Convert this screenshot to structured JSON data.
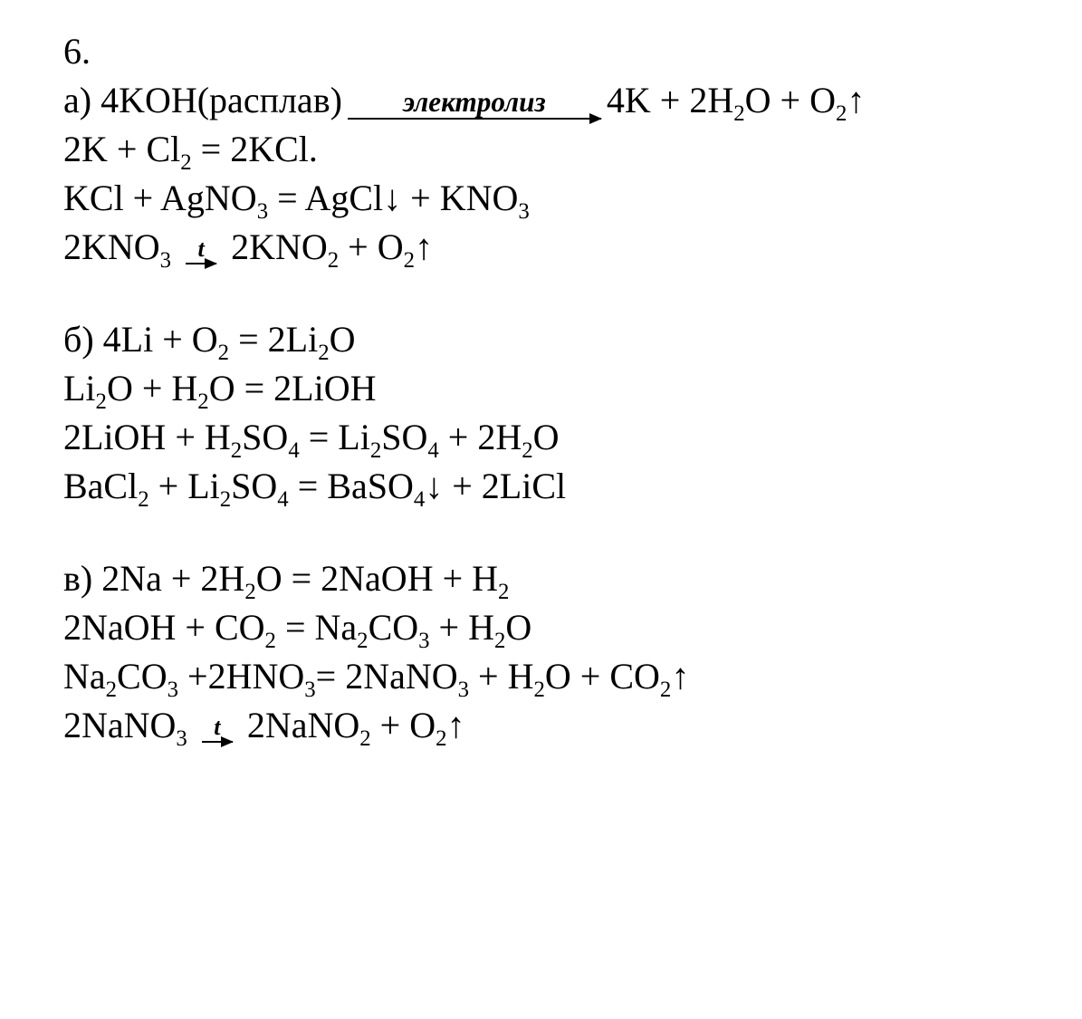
{
  "problem_number": "6.",
  "arrow_labels": {
    "electrolysis": "электролиз",
    "heat": "t"
  },
  "parts": {
    "a": {
      "label": "a)",
      "lines": [
        {
          "left": "4KOH(расплав)",
          "arrow": "electrolysis_long",
          "right": "4K + 2H<sub>2</sub>O + O<sub>2</sub>↑"
        },
        {
          "plain": "2K + Cl<sub>2</sub> = 2KCl."
        },
        {
          "plain": "KCl + AgNO<sub>3</sub> = AgCl↓ + KNO<sub>3</sub>"
        },
        {
          "left": "2KNO<sub>3</sub>",
          "arrow": "heat_short",
          "right": "2KNO<sub>2</sub> + O<sub>2</sub>↑"
        }
      ]
    },
    "b": {
      "label": "б)",
      "lines": [
        {
          "plain": "4Li + O<sub>2</sub> = 2Li<sub>2</sub>O"
        },
        {
          "plain": "Li<sub>2</sub>O + H<sub>2</sub>O = 2LiOH"
        },
        {
          "plain": "2LiOH + H<sub>2</sub>SO<sub>4</sub> = Li<sub>2</sub>SO<sub>4</sub> + 2H<sub>2</sub>O"
        },
        {
          "plain": "BaCl<sub>2</sub> + Li<sub>2</sub>SO<sub>4</sub> = BaSO<sub>4</sub>↓ + 2LiCl"
        }
      ]
    },
    "c": {
      "label": "в)",
      "lines": [
        {
          "plain": "2Na + 2H<sub>2</sub>O = 2NaOH + H<sub>2</sub>"
        },
        {
          "plain": "2NaOH + CO<sub>2</sub> = Na<sub>2</sub>CO<sub>3</sub> + H<sub>2</sub>O"
        },
        {
          "plain": "Na<sub>2</sub>CO<sub>3</sub> +2HNO<sub>3</sub>= 2NaNO<sub>3</sub> + H<sub>2</sub>O + CO<sub>2</sub>↑"
        },
        {
          "left": "2NaNO<sub>3</sub>",
          "arrow": "heat_short",
          "right": "2NaNO<sub>2</sub> + O<sub>2</sub>↑"
        }
      ]
    }
  },
  "style": {
    "font_family": "Times New Roman",
    "font_size_pt": 30,
    "text_color": "#000000",
    "background_color": "#ffffff"
  }
}
